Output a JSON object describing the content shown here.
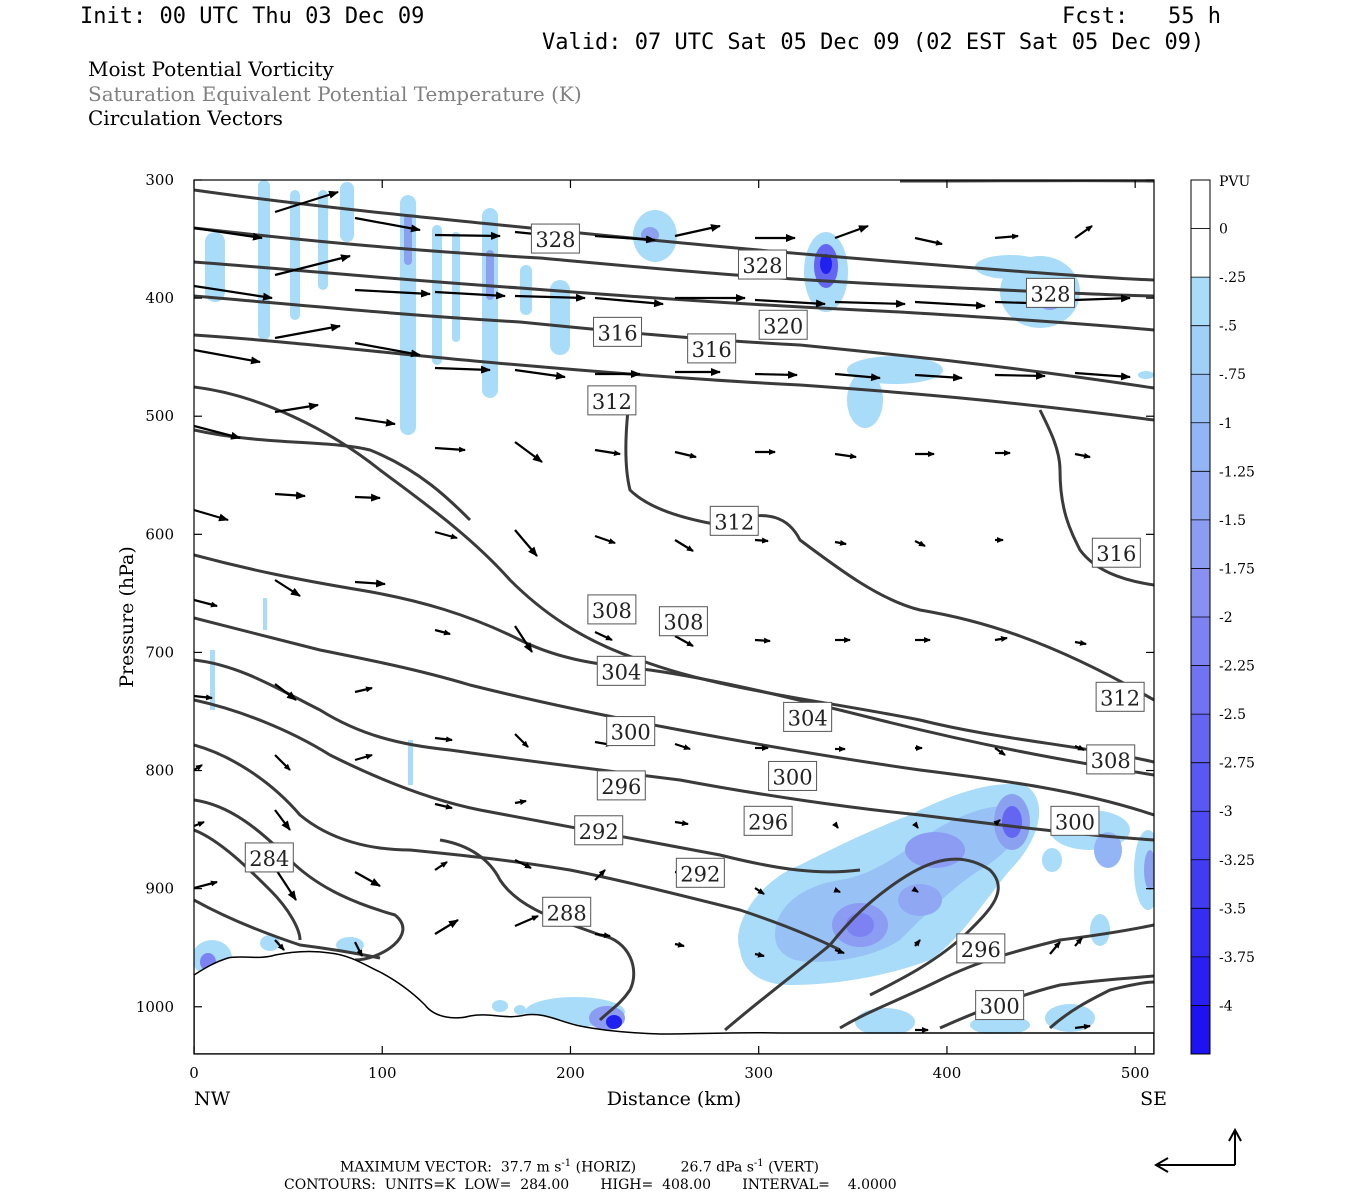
{
  "header": {
    "init": "Init: 00 UTC Thu 03 Dec 09",
    "fcst": "Fcst:   55 h",
    "valid": "Valid: 07 UTC Sat 05 Dec 09 (02 EST Sat 05 Dec 09)"
  },
  "legend": {
    "line1": "Moist Potential Vorticity",
    "line2": "Saturation Equivalent Potential Temperature (K)",
    "line3": "Circulation Vectors"
  },
  "footer": {
    "max_vector_prefix": "MAXIMUM VECTOR:  37.7 m s",
    "max_vector_horiz": "(HORIZ)",
    "max_vector_vert_value": "26.7 dPa s",
    "max_vector_vert": "(VERT)",
    "sup": "-1",
    "contours": "CONTOURS:  UNITS=K  LOW=  284.00       HIGH=  408.00       INTERVAL=    4.0000"
  },
  "colors": {
    "contour": "#3a3a3a",
    "pv_light": "#a8dcf8",
    "pv_mid": "#8ca0f0",
    "pv_dark": "#2020f0"
  },
  "chart_data": {
    "type": "heatmap",
    "xlabel": "Distance (km)",
    "ylabel": "Pressure (hPa)",
    "xlim": [
      0,
      510
    ],
    "ylim": [
      1040,
      300
    ],
    "x_ticks": [
      0,
      100,
      200,
      300,
      400,
      500
    ],
    "y_ticks": [
      300,
      400,
      500,
      600,
      700,
      800,
      900,
      1000
    ],
    "x_end_labels": {
      "left": "NW",
      "right": "SE"
    },
    "colorbar": {
      "unit": "PVU",
      "labels": [
        "0",
        "-.25",
        "-.5",
        "-.75",
        "-1",
        "-1.25",
        "-1.5",
        "-1.75",
        "-2",
        "-2.25",
        "-2.5",
        "-2.75",
        "-3",
        "-3.25",
        "-3.5",
        "-3.75",
        "-4"
      ],
      "colors": [
        "#ffffff",
        "#ffffff",
        "#a8dcf8",
        "#a0cff7",
        "#98c2f6",
        "#94b5f5",
        "#90a8f4",
        "#8c9cf3",
        "#8890f2",
        "#7c82f2",
        "#7074f2",
        "#6466f2",
        "#5858f2",
        "#4c4af2",
        "#403cf2",
        "#342ef2",
        "#2820f2",
        "#1c12f2"
      ]
    },
    "contour_labels": [
      {
        "value": "328",
        "x": 192,
        "p": 350
      },
      {
        "value": "328",
        "x": 302,
        "p": 372
      },
      {
        "value": "328",
        "x": 455,
        "p": 396
      },
      {
        "value": "320",
        "x": 313,
        "p": 423
      },
      {
        "value": "316",
        "x": 225,
        "p": 429
      },
      {
        "value": "316",
        "x": 275,
        "p": 443
      },
      {
        "value": "312",
        "x": 222,
        "p": 487
      },
      {
        "value": "312",
        "x": 287,
        "p": 589
      },
      {
        "value": "316",
        "x": 490,
        "p": 616
      },
      {
        "value": "308",
        "x": 222,
        "p": 664
      },
      {
        "value": "308",
        "x": 260,
        "p": 674
      },
      {
        "value": "304",
        "x": 227,
        "p": 716
      },
      {
        "value": "312",
        "x": 492,
        "p": 738
      },
      {
        "value": "304",
        "x": 326,
        "p": 755
      },
      {
        "value": "300",
        "x": 232,
        "p": 767
      },
      {
        "value": "308",
        "x": 487,
        "p": 791
      },
      {
        "value": "300",
        "x": 318,
        "p": 805
      },
      {
        "value": "296",
        "x": 227,
        "p": 813
      },
      {
        "value": "300",
        "x": 468,
        "p": 843
      },
      {
        "value": "296",
        "x": 305,
        "p": 843
      },
      {
        "value": "292",
        "x": 215,
        "p": 851
      },
      {
        "value": "284",
        "x": 40,
        "p": 874
      },
      {
        "value": "292",
        "x": 269,
        "p": 887
      },
      {
        "value": "288",
        "x": 198,
        "p": 920
      },
      {
        "value": "296",
        "x": 418,
        "p": 951
      },
      {
        "value": "300",
        "x": 428,
        "p": 999
      }
    ]
  }
}
